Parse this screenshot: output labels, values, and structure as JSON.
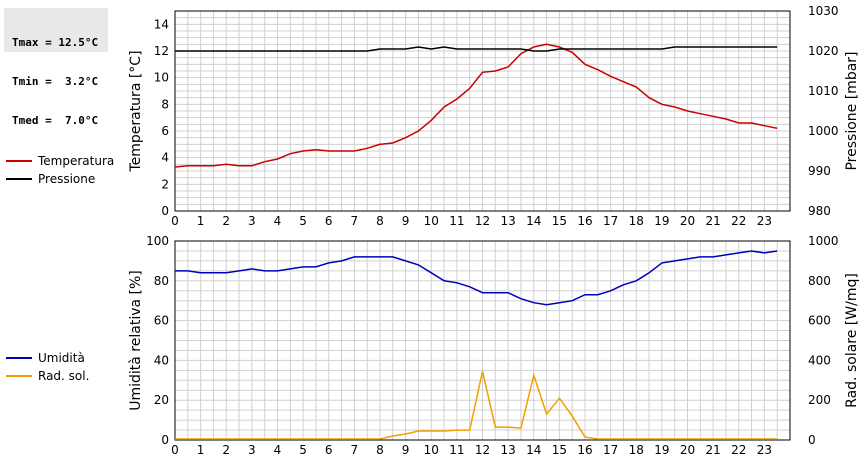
{
  "stats": {
    "tmax": "Tmax = 12.5°C",
    "tmin": "Tmin =  3.2°C",
    "tmed": "Tmed =  7.0°C"
  },
  "colors": {
    "temperature": "#cc0000",
    "pressure": "#000000",
    "humidity": "#0000bb",
    "radiation": "#f0a000",
    "grid": "#d0d0d0"
  },
  "chart_data": [
    {
      "type": "line",
      "x_ticks": [
        "0",
        "1",
        "2",
        "3",
        "4",
        "5",
        "6",
        "7",
        "8",
        "9",
        "10",
        "11",
        "12",
        "13",
        "14",
        "15",
        "16",
        "17",
        "18",
        "19",
        "20",
        "21",
        "22",
        "23"
      ],
      "xlim": [
        0,
        24
      ],
      "ylabel": "Temperatura [°C]",
      "ylim": [
        0,
        15
      ],
      "y_ticks": [
        "0",
        "2",
        "4",
        "6",
        "8",
        "10",
        "12",
        "14"
      ],
      "y2label": "Pressione [mbar]",
      "y2lim": [
        980,
        1030
      ],
      "y2_ticks": [
        "980",
        "990",
        "1000",
        "1010",
        "1020",
        "1030"
      ],
      "grid": true,
      "legend_position": "left",
      "series": [
        {
          "name": "Temperatura",
          "axis": "left",
          "color": "#cc0000",
          "x": [
            0,
            0.5,
            1,
            1.5,
            2,
            2.5,
            3,
            3.5,
            4,
            4.5,
            5,
            5.5,
            6,
            6.5,
            7,
            7.5,
            8,
            8.5,
            9,
            9.5,
            10,
            10.5,
            11,
            11.5,
            12,
            12.5,
            13,
            13.5,
            14,
            14.5,
            15,
            15.5,
            16,
            16.5,
            17,
            17.5,
            18,
            18.5,
            19,
            19.5,
            20,
            20.5,
            21,
            21.5,
            22,
            22.5,
            23,
            23.5
          ],
          "values": [
            3.3,
            3.4,
            3.4,
            3.4,
            3.5,
            3.4,
            3.4,
            3.7,
            3.9,
            4.3,
            4.5,
            4.6,
            4.5,
            4.5,
            4.5,
            4.7,
            5.0,
            5.1,
            5.5,
            6.0,
            6.8,
            7.8,
            8.4,
            9.2,
            10.4,
            10.5,
            10.8,
            11.8,
            12.3,
            12.5,
            12.3,
            11.9,
            11.0,
            10.6,
            10.1,
            9.7,
            9.3,
            8.5,
            8.0,
            7.8,
            7.5,
            7.3,
            7.1,
            6.9,
            6.6,
            6.6,
            6.4,
            6.2
          ]
        },
        {
          "name": "Pressione",
          "axis": "right",
          "color": "#000000",
          "x": [
            0,
            1,
            2,
            3,
            4,
            5,
            6,
            7,
            7.5,
            8,
            9,
            9.5,
            10,
            10.5,
            11,
            12,
            13,
            13.5,
            14,
            14.5,
            15,
            16,
            17,
            18,
            19,
            19.5,
            20,
            21,
            22,
            23,
            23.5
          ],
          "values": [
            1020,
            1020,
            1020,
            1020,
            1020,
            1020,
            1020,
            1020,
            1020,
            1020.5,
            1020.5,
            1021,
            1020.5,
            1021,
            1020.5,
            1020.5,
            1020.5,
            1020.5,
            1020,
            1020,
            1020.5,
            1020.5,
            1020.5,
            1020.5,
            1020.5,
            1021,
            1021,
            1021,
            1021,
            1021,
            1021
          ]
        }
      ]
    },
    {
      "type": "line",
      "x_ticks": [
        "0",
        "1",
        "2",
        "3",
        "4",
        "5",
        "6",
        "7",
        "8",
        "9",
        "10",
        "11",
        "12",
        "13",
        "14",
        "15",
        "16",
        "17",
        "18",
        "19",
        "20",
        "21",
        "22",
        "23"
      ],
      "xlim": [
        0,
        24
      ],
      "ylabel": "Umidità relativa [%]",
      "ylim": [
        0,
        100
      ],
      "y_ticks": [
        "0",
        "20",
        "40",
        "60",
        "80",
        "100"
      ],
      "y2label": "Rad. solare [W/mq]",
      "y2lim": [
        0,
        1000
      ],
      "y2_ticks": [
        "0",
        "200",
        "400",
        "600",
        "800",
        "1000"
      ],
      "grid": true,
      "legend_position": "left",
      "series": [
        {
          "name": "Umidità",
          "axis": "left",
          "color": "#0000bb",
          "x": [
            0,
            0.5,
            1,
            1.5,
            2,
            2.5,
            3,
            3.5,
            4,
            4.5,
            5,
            5.5,
            6,
            6.5,
            7,
            7.5,
            8,
            8.5,
            9,
            9.5,
            10,
            10.5,
            11,
            11.5,
            12,
            12.5,
            13,
            13.5,
            14,
            14.5,
            15,
            15.5,
            16,
            16.5,
            17,
            17.5,
            18,
            18.5,
            19,
            19.5,
            20,
            20.5,
            21,
            21.5,
            22,
            22.5,
            23,
            23.5
          ],
          "values": [
            85,
            85,
            84,
            84,
            84,
            85,
            86,
            85,
            85,
            86,
            87,
            87,
            89,
            90,
            92,
            92,
            92,
            92,
            90,
            88,
            84,
            80,
            79,
            77,
            74,
            74,
            74,
            71,
            69,
            68,
            69,
            70,
            73,
            73,
            75,
            78,
            80,
            84,
            89,
            90,
            91,
            92,
            92,
            93,
            94,
            95,
            94,
            95
          ]
        },
        {
          "name": "Rad. sol.",
          "axis": "right",
          "color": "#f0a000",
          "x": [
            0,
            1,
            2,
            3,
            4,
            5,
            6,
            7,
            7.5,
            8,
            8.5,
            9,
            9.5,
            10,
            10.5,
            11,
            11.5,
            12,
            12.5,
            13,
            13.5,
            14,
            14.5,
            15,
            15.5,
            16,
            16.5,
            17,
            18,
            19,
            20,
            21,
            22,
            23,
            23.5
          ],
          "values": [
            5,
            5,
            5,
            5,
            5,
            5,
            5,
            5,
            5,
            5,
            20,
            30,
            45,
            45,
            45,
            50,
            50,
            345,
            65,
            65,
            60,
            325,
            130,
            210,
            120,
            15,
            5,
            5,
            5,
            5,
            5,
            5,
            5,
            5,
            5
          ]
        }
      ]
    }
  ]
}
